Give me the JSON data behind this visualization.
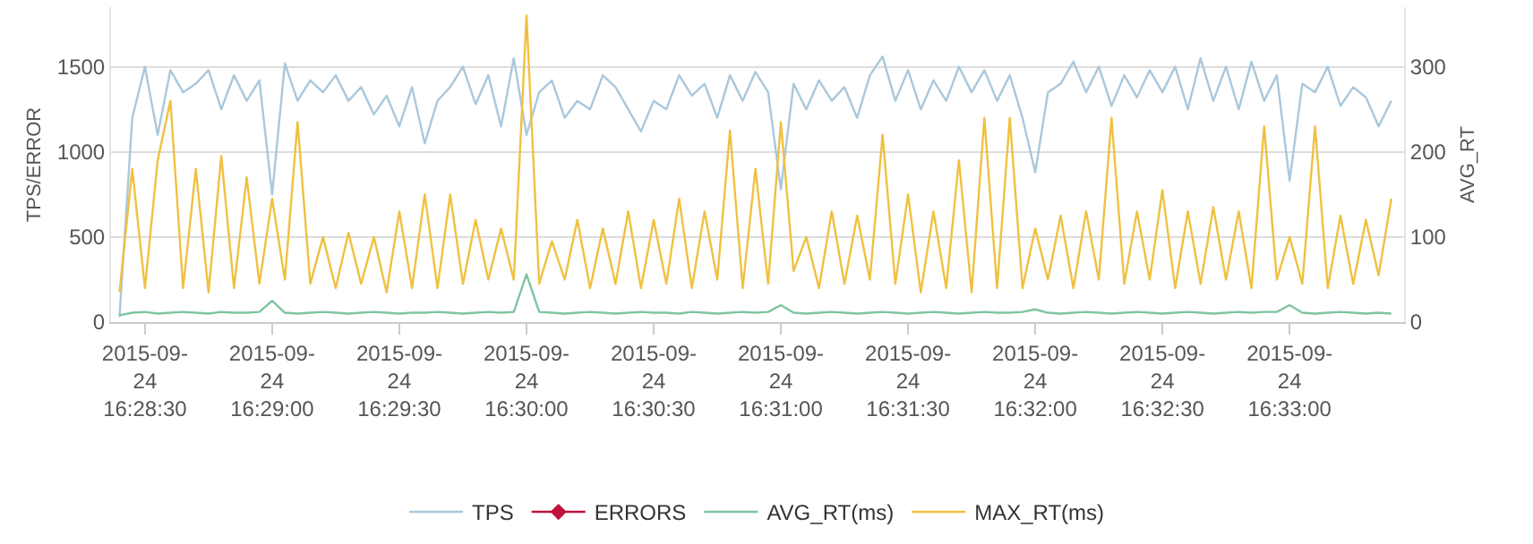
{
  "chart_data": {
    "type": "line",
    "xlabel": null,
    "ylabel": "TPS/ERROR",
    "y2label": "AVG_RT",
    "x": [
      "2015-09-24T16:28:24",
      "2015-09-24T16:28:27",
      "2015-09-24T16:28:30",
      "2015-09-24T16:28:33",
      "2015-09-24T16:28:36",
      "2015-09-24T16:28:39",
      "2015-09-24T16:28:42",
      "2015-09-24T16:28:45",
      "2015-09-24T16:28:48",
      "2015-09-24T16:28:51",
      "2015-09-24T16:28:54",
      "2015-09-24T16:28:57",
      "2015-09-24T16:29:00",
      "2015-09-24T16:29:03",
      "2015-09-24T16:29:06",
      "2015-09-24T16:29:09",
      "2015-09-24T16:29:12",
      "2015-09-24T16:29:15",
      "2015-09-24T16:29:18",
      "2015-09-24T16:29:21",
      "2015-09-24T16:29:24",
      "2015-09-24T16:29:27",
      "2015-09-24T16:29:30",
      "2015-09-24T16:29:33",
      "2015-09-24T16:29:36",
      "2015-09-24T16:29:39",
      "2015-09-24T16:29:42",
      "2015-09-24T16:29:45",
      "2015-09-24T16:29:48",
      "2015-09-24T16:29:51",
      "2015-09-24T16:29:54",
      "2015-09-24T16:29:57",
      "2015-09-24T16:30:00",
      "2015-09-24T16:30:03",
      "2015-09-24T16:30:06",
      "2015-09-24T16:30:09",
      "2015-09-24T16:30:12",
      "2015-09-24T16:30:15",
      "2015-09-24T16:30:18",
      "2015-09-24T16:30:21",
      "2015-09-24T16:30:24",
      "2015-09-24T16:30:27",
      "2015-09-24T16:30:30",
      "2015-09-24T16:30:33",
      "2015-09-24T16:30:36",
      "2015-09-24T16:30:39",
      "2015-09-24T16:30:42",
      "2015-09-24T16:30:45",
      "2015-09-24T16:30:48",
      "2015-09-24T16:30:51",
      "2015-09-24T16:30:54",
      "2015-09-24T16:30:57",
      "2015-09-24T16:31:00",
      "2015-09-24T16:31:03",
      "2015-09-24T16:31:06",
      "2015-09-24T16:31:09",
      "2015-09-24T16:31:12",
      "2015-09-24T16:31:15",
      "2015-09-24T16:31:18",
      "2015-09-24T16:31:21",
      "2015-09-24T16:31:24",
      "2015-09-24T16:31:27",
      "2015-09-24T16:31:30",
      "2015-09-24T16:31:33",
      "2015-09-24T16:31:36",
      "2015-09-24T16:31:39",
      "2015-09-24T16:31:42",
      "2015-09-24T16:31:45",
      "2015-09-24T16:31:48",
      "2015-09-24T16:31:51",
      "2015-09-24T16:31:54",
      "2015-09-24T16:31:57",
      "2015-09-24T16:32:00",
      "2015-09-24T16:32:03",
      "2015-09-24T16:32:06",
      "2015-09-24T16:32:09",
      "2015-09-24T16:32:12",
      "2015-09-24T16:32:15",
      "2015-09-24T16:32:18",
      "2015-09-24T16:32:21",
      "2015-09-24T16:32:24",
      "2015-09-24T16:32:27",
      "2015-09-24T16:32:30",
      "2015-09-24T16:32:33",
      "2015-09-24T16:32:36",
      "2015-09-24T16:32:39",
      "2015-09-24T16:32:42",
      "2015-09-24T16:32:45",
      "2015-09-24T16:32:48",
      "2015-09-24T16:32:51",
      "2015-09-24T16:32:54",
      "2015-09-24T16:32:57",
      "2015-09-24T16:33:00",
      "2015-09-24T16:33:03",
      "2015-09-24T16:33:06",
      "2015-09-24T16:33:09",
      "2015-09-24T16:33:12",
      "2015-09-24T16:33:15",
      "2015-09-24T16:33:18",
      "2015-09-24T16:33:21",
      "2015-09-24T16:33:24"
    ],
    "xlim": [
      "2015-09-24T16:28:22",
      "2015-09-24T16:33:27"
    ],
    "xticks": [
      {
        "value": "2015-09-24T16:28:30",
        "label": "2015-09-\n24\n16:28:30"
      },
      {
        "value": "2015-09-24T16:29:00",
        "label": "2015-09-\n24\n16:29:00"
      },
      {
        "value": "2015-09-24T16:29:30",
        "label": "2015-09-\n24\n16:29:30"
      },
      {
        "value": "2015-09-24T16:30:00",
        "label": "2015-09-\n24\n16:30:00"
      },
      {
        "value": "2015-09-24T16:30:30",
        "label": "2015-09-\n24\n16:30:30"
      },
      {
        "value": "2015-09-24T16:31:00",
        "label": "2015-09-\n24\n16:31:00"
      },
      {
        "value": "2015-09-24T16:31:30",
        "label": "2015-09-\n24\n16:31:30"
      },
      {
        "value": "2015-09-24T16:32:00",
        "label": "2015-09-\n24\n16:32:00"
      },
      {
        "value": "2015-09-24T16:32:30",
        "label": "2015-09-\n24\n16:32:30"
      },
      {
        "value": "2015-09-24T16:33:00",
        "label": "2015-09-\n24\n16:33:00"
      }
    ],
    "ylim": [
      0,
      1850
    ],
    "yticks": [
      0,
      500,
      1000,
      1500
    ],
    "y2lim": [
      0,
      370
    ],
    "y2ticks": [
      0,
      100,
      200,
      300
    ],
    "grid": "y",
    "legend": "bottom",
    "marker": "none",
    "line_style": "solid",
    "series": [
      {
        "name": "TPS",
        "color": "#a9c8dc",
        "values": [
          30,
          1200,
          1500,
          1100,
          1480,
          1350,
          1400,
          1480,
          1250,
          1450,
          1300,
          1420,
          750,
          1520,
          1300,
          1420,
          1350,
          1450,
          1300,
          1380,
          1220,
          1330,
          1150,
          1380,
          1050,
          1300,
          1380,
          1500,
          1280,
          1450,
          1150,
          1550,
          1100,
          1350,
          1420,
          1200,
          1300,
          1250,
          1450,
          1380,
          1250,
          1120,
          1300,
          1250,
          1450,
          1330,
          1400,
          1200,
          1450,
          1300,
          1470,
          1350,
          780,
          1400,
          1250,
          1420,
          1300,
          1380,
          1200,
          1450,
          1560,
          1300,
          1480,
          1250,
          1420,
          1300,
          1500,
          1350,
          1480,
          1300,
          1450,
          1200,
          880,
          1350,
          1400,
          1530,
          1350,
          1500,
          1270,
          1450,
          1320,
          1480,
          1350,
          1500,
          1250,
          1550,
          1300,
          1500,
          1250,
          1530,
          1300,
          1450,
          830,
          1400,
          1350,
          1500,
          1270,
          1380,
          1320,
          1150,
          1300
        ]
      },
      {
        "name": "ERRORS",
        "color": "#c0123c",
        "marker": "diamond",
        "values": [
          null,
          null,
          null,
          null,
          null,
          null,
          null,
          null,
          null,
          null,
          null,
          null,
          null,
          null,
          null,
          null,
          null,
          null,
          null,
          null,
          null,
          null,
          null,
          null,
          null,
          null,
          null,
          null,
          null,
          null,
          null,
          null,
          null,
          null,
          null,
          null,
          null,
          null,
          null,
          null,
          null,
          null,
          null,
          null,
          null,
          null,
          null,
          null,
          null,
          null,
          null,
          null,
          null,
          null,
          null,
          null,
          null,
          null,
          null,
          null,
          null,
          null,
          null,
          null,
          null,
          null,
          null,
          null,
          null,
          null,
          null,
          null,
          null,
          null,
          null,
          null,
          null,
          null,
          null,
          null,
          null,
          null,
          null,
          null,
          null,
          null,
          null,
          null,
          null,
          null,
          null,
          null,
          null,
          null,
          null,
          null,
          null,
          null,
          null,
          null,
          null
        ]
      },
      {
        "name": "AVG_RT(ms)",
        "color": "#7fc4a0",
        "axis": "y2",
        "values": [
          8,
          11,
          12,
          10,
          11,
          12,
          11,
          10,
          12,
          11,
          11,
          12,
          25,
          11,
          10,
          11,
          12,
          11,
          10,
          11,
          12,
          11,
          10,
          11,
          11,
          12,
          11,
          10,
          11,
          12,
          11,
          12,
          56,
          12,
          11,
          10,
          11,
          12,
          11,
          10,
          11,
          12,
          11,
          11,
          10,
          12,
          11,
          10,
          11,
          12,
          11,
          12,
          20,
          11,
          10,
          11,
          12,
          11,
          10,
          11,
          12,
          11,
          10,
          11,
          12,
          11,
          10,
          11,
          12,
          11,
          11,
          12,
          15,
          11,
          10,
          11,
          12,
          11,
          10,
          11,
          12,
          11,
          10,
          11,
          12,
          11,
          10,
          11,
          12,
          11,
          12,
          12,
          20,
          11,
          10,
          11,
          12,
          11,
          10,
          11,
          10
        ]
      },
      {
        "name": "MAX_RT(ms)",
        "color": "#f0c040",
        "axis": "y2",
        "values": [
          35,
          180,
          40,
          190,
          260,
          40,
          180,
          35,
          195,
          40,
          170,
          45,
          145,
          50,
          235,
          45,
          100,
          40,
          105,
          45,
          100,
          35,
          130,
          40,
          150,
          40,
          150,
          45,
          120,
          50,
          110,
          50,
          360,
          45,
          95,
          50,
          120,
          40,
          110,
          45,
          130,
          40,
          120,
          45,
          145,
          40,
          130,
          50,
          225,
          40,
          180,
          45,
          235,
          60,
          100,
          40,
          130,
          45,
          125,
          50,
          220,
          45,
          150,
          35,
          130,
          40,
          190,
          35,
          240,
          40,
          240,
          40,
          110,
          50,
          125,
          40,
          130,
          50,
          240,
          45,
          130,
          50,
          155,
          40,
          130,
          45,
          135,
          50,
          130,
          40,
          230,
          50,
          100,
          45,
          230,
          40,
          125,
          45,
          120,
          55,
          145
        ]
      }
    ]
  }
}
